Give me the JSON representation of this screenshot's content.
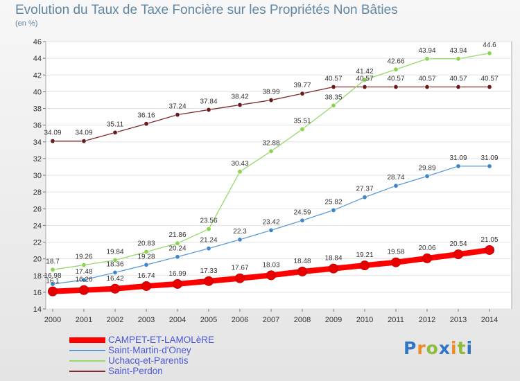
{
  "chart_data": {
    "type": "line",
    "title": "Evolution du Taux de Taxe Foncière sur les Propriétés Non Bâties",
    "unit_label": "(en %)",
    "x": [
      "2000",
      "2001",
      "2002",
      "2003",
      "2004",
      "2005",
      "2006",
      "2007",
      "2008",
      "2009",
      "2010",
      "2011",
      "2012",
      "2013",
      "2014"
    ],
    "ylim": [
      14,
      46
    ],
    "yticks": [
      14,
      16,
      18,
      20,
      22,
      24,
      26,
      28,
      30,
      32,
      34,
      36,
      38,
      40,
      42,
      44,
      46
    ],
    "grid": "horizontal",
    "legend_position": "bottom-left",
    "series": [
      {
        "name": "CAMPET-ET-LAMOLèRE",
        "color": "#ff0000",
        "marker_color": "#e80000",
        "thick": true,
        "values": [
          16.1,
          16.26,
          16.42,
          16.74,
          16.99,
          17.33,
          17.67,
          18.03,
          18.48,
          18.84,
          19.21,
          19.58,
          20.06,
          20.54,
          21.05
        ],
        "labels": [
          "16.1",
          "16.26",
          "16.42",
          "16.74",
          "16.99",
          "17.33",
          "17.67",
          "18.03",
          "18.48",
          "18.84",
          "19.21",
          "19.58",
          "20.06",
          "20.54",
          "21.05"
        ]
      },
      {
        "name": "Saint-Martin-d'Oney",
        "color": "#5b9bd5",
        "marker_color": "#3f85c8",
        "thick": false,
        "values": [
          16.98,
          17.48,
          18.36,
          19.28,
          20.24,
          21.24,
          22.3,
          23.42,
          24.59,
          25.82,
          27.37,
          28.74,
          29.89,
          31.09,
          31.09
        ],
        "labels": [
          "16.98",
          "17.48",
          "18.36",
          "19.28",
          "20.24",
          "21.24",
          "22.3",
          "23.42",
          "24.59",
          "25.82",
          "27.37",
          "28.74",
          "29.89",
          "31.09",
          "31.09"
        ]
      },
      {
        "name": "Uchacq-et-Parentis",
        "color": "#97d86a",
        "marker_color": "#8ad24f",
        "thick": false,
        "values": [
          18.7,
          19.26,
          19.84,
          20.83,
          21.86,
          23.56,
          30.43,
          32.88,
          35.51,
          38.35,
          41.42,
          42.66,
          43.94,
          43.94,
          44.6
        ],
        "labels": [
          "18.7",
          "19.26",
          "19.84",
          "20.83",
          "21.86",
          "23.56",
          "30.43",
          "32.88",
          "35.51",
          "38.35",
          "41.42",
          "42.66",
          "43.94",
          "43.94",
          "44.6"
        ]
      },
      {
        "name": "Saint-Perdon",
        "color": "#7d2b2b",
        "marker_color": "#6a1a1a",
        "thick": false,
        "values": [
          34.09,
          34.09,
          35.11,
          36.16,
          37.24,
          37.84,
          38.42,
          38.99,
          39.77,
          40.57,
          40.57,
          40.57,
          40.57,
          40.57,
          40.57
        ],
        "labels": [
          "34.09",
          "34.09",
          "35.11",
          "36.16",
          "37.24",
          "37.84",
          "38.42",
          "38.99",
          "39.77",
          "40.57",
          "40.57",
          "40.57",
          "40.57",
          "40.57",
          "40.57"
        ]
      }
    ]
  },
  "logo": {
    "letters": [
      "P",
      "r",
      "o",
      "x",
      "i",
      "t",
      "i"
    ]
  }
}
